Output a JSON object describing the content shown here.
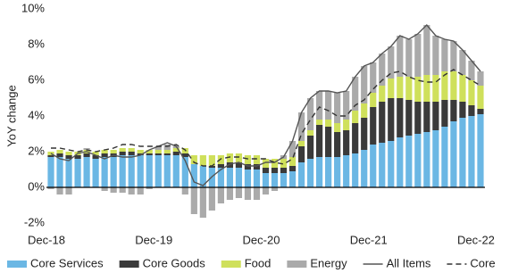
{
  "chart_data": {
    "type": "stacked-bar-line",
    "y_label": "YoY change",
    "categories": [
      "Dec-18",
      null,
      null,
      null,
      null,
      null,
      null,
      null,
      null,
      null,
      null,
      null,
      "Dec-19",
      null,
      null,
      null,
      null,
      null,
      null,
      null,
      null,
      null,
      null,
      null,
      "Dec-20",
      null,
      null,
      null,
      null,
      null,
      null,
      null,
      null,
      null,
      null,
      null,
      "Dec-21",
      null,
      null,
      null,
      null,
      null,
      null,
      null,
      null,
      null,
      null,
      null,
      "Dec-22"
    ],
    "ylim": [
      -2.5,
      10
    ],
    "yticks": [
      {
        "value": -2,
        "label": "-2%"
      },
      {
        "value": 0,
        "label": "0%"
      },
      {
        "value": 2,
        "label": "2%"
      },
      {
        "value": 4,
        "label": "4%"
      },
      {
        "value": 6,
        "label": "6%"
      },
      {
        "value": 8,
        "label": "8%"
      },
      {
        "value": 10,
        "label": "10%"
      }
    ],
    "series": [
      {
        "name": "Core Services",
        "kind": "bar",
        "color": "#6bb7e4",
        "values": [
          1.7,
          1.7,
          1.6,
          1.6,
          1.7,
          1.6,
          1.7,
          1.7,
          1.8,
          1.8,
          1.8,
          1.8,
          1.8,
          1.8,
          1.8,
          1.7,
          1.3,
          1.2,
          1.1,
          1.1,
          1.1,
          1.1,
          1.0,
          1.0,
          0.8,
          0.8,
          0.8,
          0.9,
          1.4,
          1.6,
          1.7,
          1.7,
          1.7,
          1.8,
          1.9,
          2.1,
          2.4,
          2.5,
          2.6,
          2.8,
          2.9,
          3.0,
          3.1,
          3.2,
          3.4,
          3.7,
          3.9,
          4.0,
          4.1
        ]
      },
      {
        "name": "Core Goods",
        "kind": "bar",
        "color": "#3a3a3a",
        "values": [
          0.1,
          0.2,
          0.2,
          0.2,
          0.2,
          0.2,
          0.2,
          0.2,
          0.2,
          0.2,
          0.1,
          0.1,
          0.1,
          0.1,
          0.2,
          0.2,
          0.0,
          0.0,
          0.1,
          0.2,
          0.3,
          0.3,
          0.3,
          0.3,
          0.3,
          0.3,
          0.3,
          0.3,
          0.9,
          1.3,
          1.8,
          1.7,
          1.4,
          1.4,
          1.7,
          1.8,
          2.1,
          2.3,
          2.4,
          2.2,
          2.0,
          1.8,
          1.7,
          1.6,
          1.5,
          1.2,
          0.9,
          0.6,
          0.3
        ]
      },
      {
        "name": "Food",
        "kind": "bar",
        "color": "#cfe05b",
        "values": [
          0.2,
          0.2,
          0.2,
          0.2,
          0.2,
          0.2,
          0.2,
          0.2,
          0.2,
          0.2,
          0.2,
          0.2,
          0.2,
          0.2,
          0.2,
          0.3,
          0.5,
          0.6,
          0.6,
          0.5,
          0.5,
          0.5,
          0.5,
          0.5,
          0.5,
          0.5,
          0.5,
          0.5,
          0.3,
          0.3,
          0.3,
          0.4,
          0.5,
          0.6,
          0.7,
          0.8,
          0.8,
          0.9,
          1.1,
          1.2,
          1.3,
          1.4,
          1.5,
          1.5,
          1.6,
          1.6,
          1.5,
          1.4,
          1.3
        ]
      },
      {
        "name": "Energy",
        "kind": "bar",
        "color": "#aaaaaa",
        "values": [
          -0.1,
          -0.4,
          -0.4,
          0.0,
          0.1,
          0.0,
          -0.2,
          -0.3,
          -0.3,
          -0.4,
          -0.4,
          -0.1,
          0.2,
          0.3,
          0.1,
          -0.4,
          -1.5,
          -1.7,
          -1.3,
          -0.9,
          -0.7,
          -0.6,
          -0.7,
          -0.7,
          -0.4,
          -0.2,
          0.2,
          0.9,
          1.6,
          1.8,
          1.6,
          1.6,
          1.7,
          1.6,
          1.9,
          2.1,
          1.7,
          1.8,
          1.8,
          2.3,
          2.1,
          2.4,
          2.8,
          2.2,
          1.8,
          1.7,
          1.4,
          1.1,
          0.8
        ]
      },
      {
        "name": "All Items",
        "kind": "line",
        "color": "#555555",
        "values": [
          1.9,
          1.6,
          1.5,
          1.9,
          2.0,
          1.8,
          1.6,
          1.8,
          1.7,
          1.7,
          1.8,
          2.1,
          2.3,
          2.5,
          2.3,
          1.5,
          0.3,
          0.1,
          0.6,
          1.0,
          1.3,
          1.4,
          1.2,
          1.2,
          1.4,
          1.4,
          1.7,
          2.6,
          4.2,
          5.0,
          5.4,
          5.4,
          5.3,
          5.4,
          6.2,
          6.8,
          7.0,
          7.5,
          7.9,
          8.5,
          8.3,
          8.6,
          9.1,
          8.5,
          8.3,
          8.2,
          7.7,
          7.1,
          6.5
        ]
      },
      {
        "name": "Core",
        "kind": "line",
        "dashed": true,
        "color": "#333333",
        "values": [
          2.2,
          2.2,
          2.1,
          2.0,
          2.1,
          2.0,
          2.1,
          2.2,
          2.4,
          2.4,
          2.3,
          2.3,
          2.3,
          2.3,
          2.4,
          2.1,
          1.4,
          1.2,
          1.2,
          1.6,
          1.7,
          1.7,
          1.6,
          1.6,
          1.6,
          1.4,
          1.3,
          1.6,
          3.0,
          3.8,
          4.5,
          4.3,
          4.0,
          4.0,
          4.6,
          4.9,
          5.5,
          6.0,
          6.4,
          6.5,
          6.2,
          6.0,
          5.9,
          5.9,
          6.3,
          6.6,
          6.3,
          6.0,
          5.7
        ]
      }
    ]
  }
}
